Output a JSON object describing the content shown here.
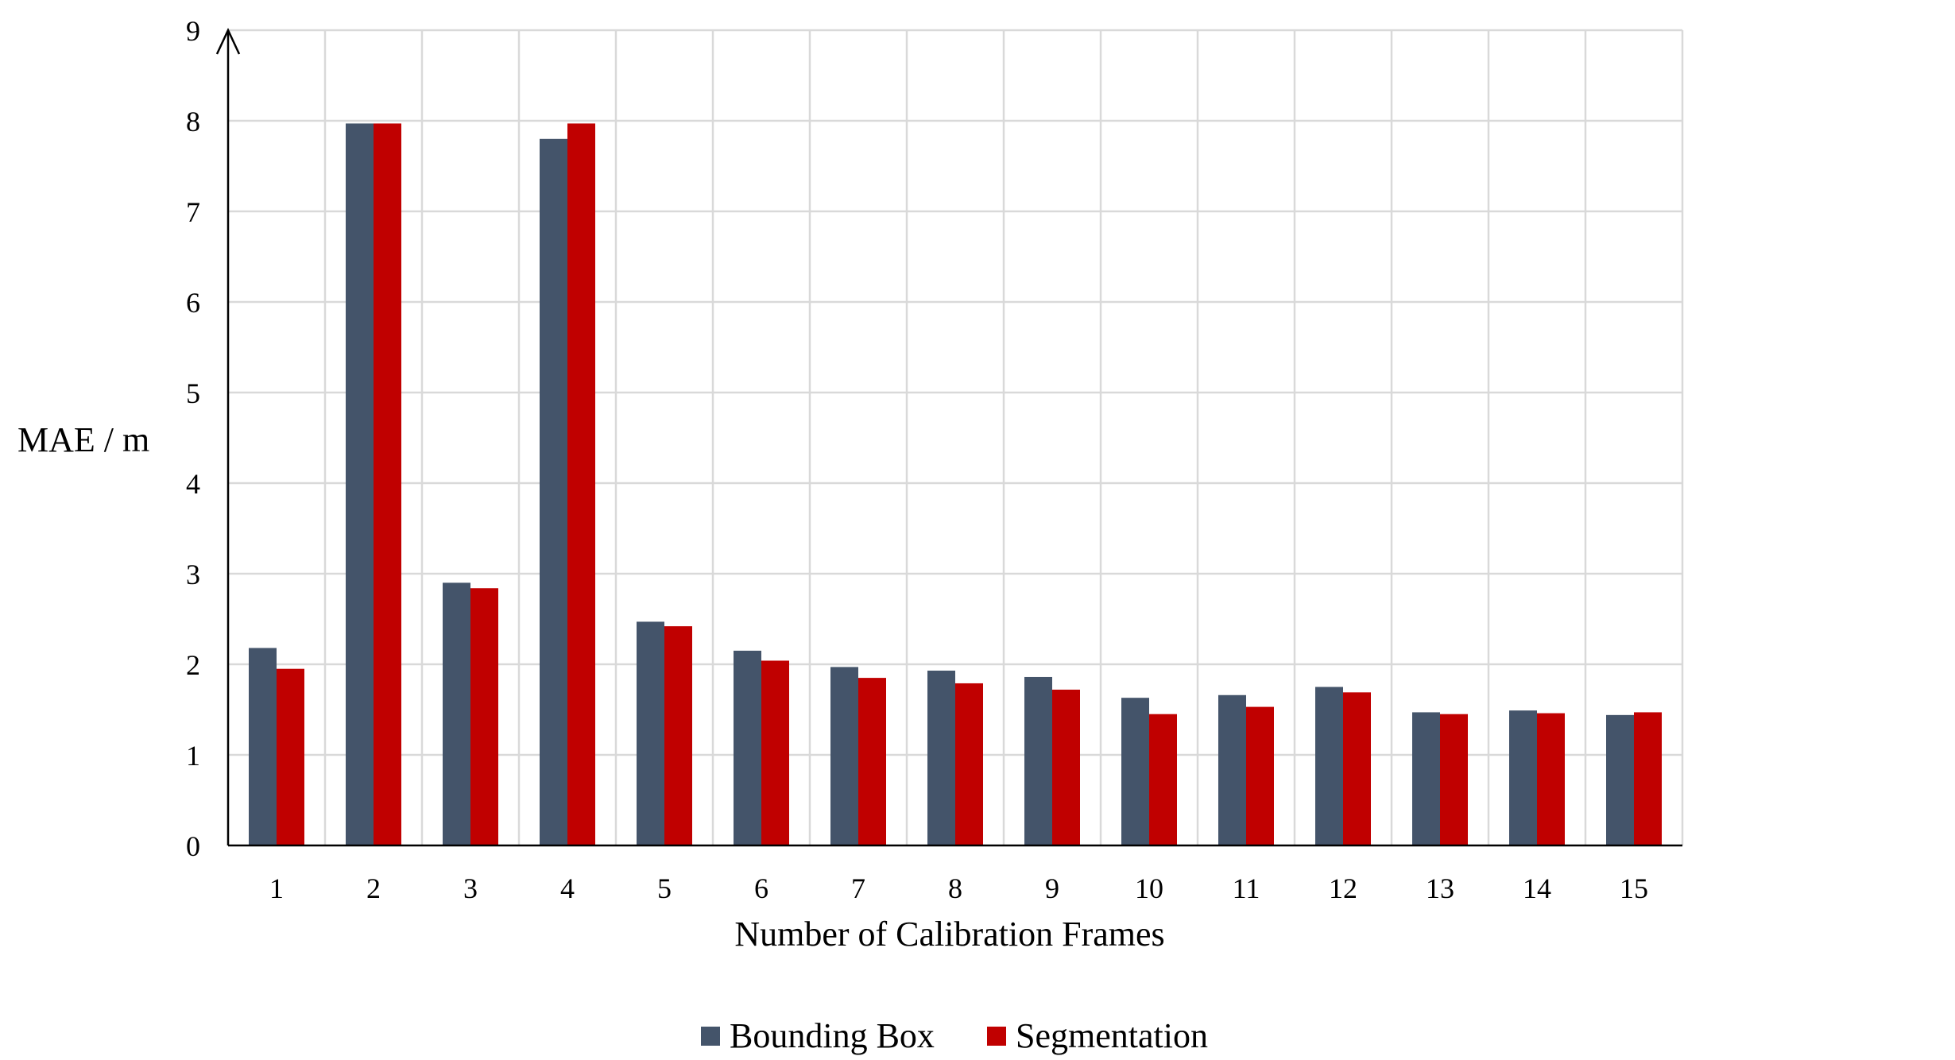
{
  "chart_data": {
    "type": "bar",
    "title": "",
    "xlabel": "Number of Calibration Frames",
    "ylabel": "MAE / m",
    "ylim": [
      0,
      9
    ],
    "yticks": [
      0,
      1,
      2,
      3,
      4,
      5,
      6,
      7,
      8,
      9
    ],
    "grid": true,
    "legend_position": "bottom",
    "categories": [
      "1",
      "2",
      "3",
      "4",
      "5",
      "6",
      "7",
      "8",
      "9",
      "10",
      "11",
      "12",
      "13",
      "14",
      "15"
    ],
    "series": [
      {
        "name": "Bounding Box",
        "color": "#44546a",
        "values": [
          2.18,
          7.97,
          2.9,
          7.8,
          2.47,
          2.15,
          1.97,
          1.93,
          1.86,
          1.63,
          1.66,
          1.75,
          1.47,
          1.49,
          1.44
        ]
      },
      {
        "name": "Segmentation",
        "color": "#c00000",
        "values": [
          1.95,
          7.97,
          2.84,
          7.97,
          2.42,
          2.04,
          1.85,
          1.79,
          1.72,
          1.45,
          1.53,
          1.69,
          1.45,
          1.46,
          1.47
        ]
      }
    ]
  }
}
